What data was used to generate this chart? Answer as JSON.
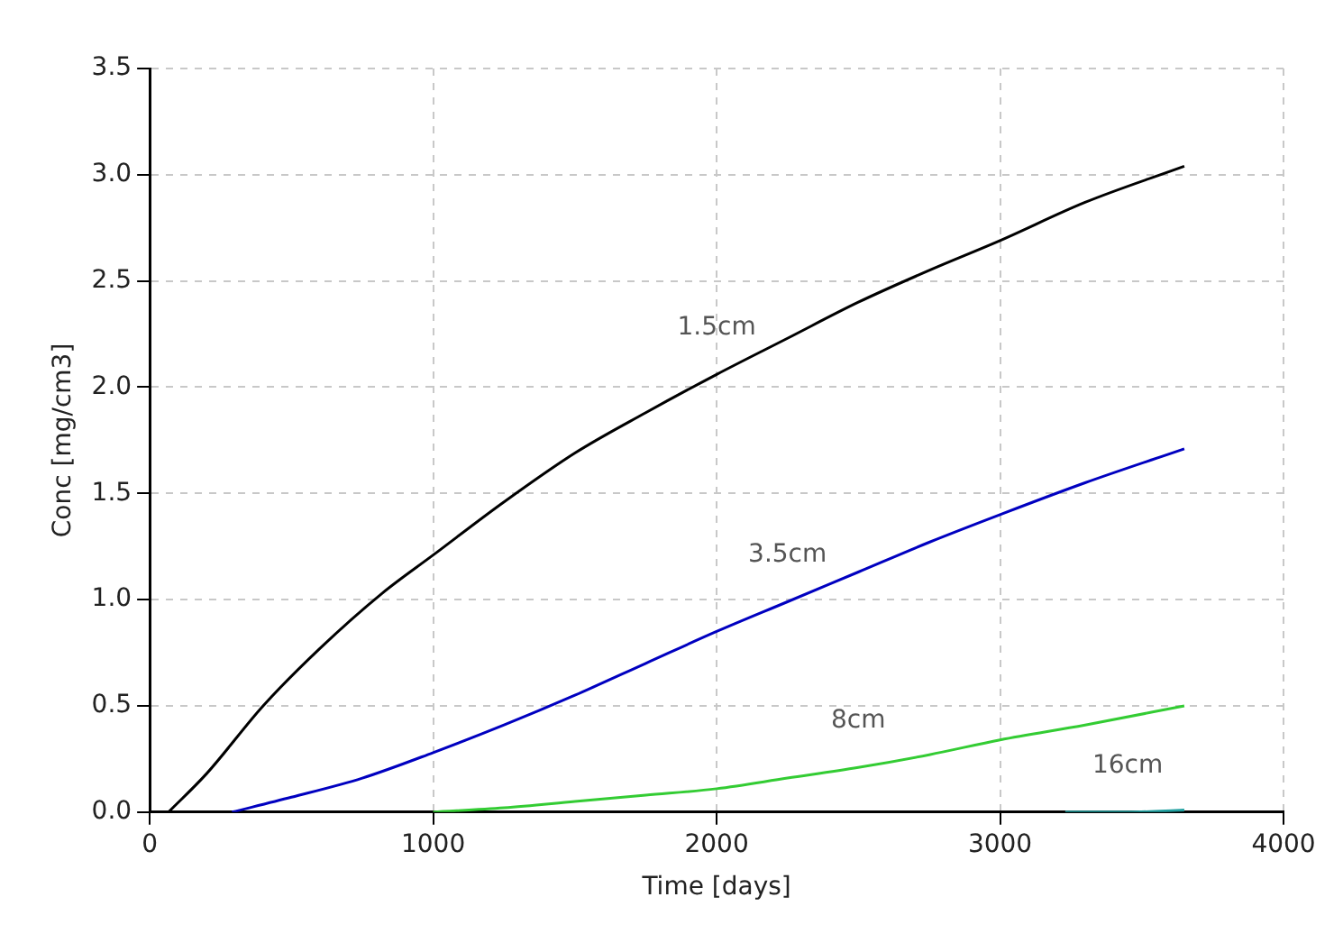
{
  "chart_data": {
    "type": "line",
    "xlabel": "Time [days]",
    "ylabel": "Conc [mg/cm3]",
    "xlim": [
      0,
      4000
    ],
    "xticks": [
      0,
      1000,
      2000,
      3000,
      4000
    ],
    "ylim": [
      0,
      3.5
    ],
    "yticks": [
      {
        "value": 0,
        "label": "0.0"
      },
      {
        "value": 0.5,
        "label": "0.5"
      },
      {
        "value": 1,
        "label": "1.0"
      },
      {
        "value": 1.5,
        "label": "1.5"
      },
      {
        "value": 2,
        "label": "2.0"
      },
      {
        "value": 2.5,
        "label": "2.5"
      },
      {
        "value": 3,
        "label": "3.0"
      },
      {
        "value": 3.5,
        "label": "3.5"
      }
    ],
    "grid": true,
    "legend": false,
    "marker": "none",
    "line_style": "solid",
    "series": [
      {
        "name": "1.5cm",
        "color": "#000000",
        "x": [
          66,
          200,
          400,
          600,
          820,
          1000,
          1250,
          1500,
          1750,
          2000,
          2250,
          2500,
          2750,
          3000,
          3300,
          3650
        ],
        "values": [
          0,
          0.18,
          0.5,
          0.77,
          1.03,
          1.21,
          1.46,
          1.69,
          1.88,
          2.06,
          2.23,
          2.4,
          2.55,
          2.69,
          2.87,
          3.04
        ]
      },
      {
        "name": "3.5cm",
        "color": "#0000c0",
        "x": [
          290,
          500,
          750,
          1000,
          1250,
          1500,
          1750,
          2000,
          2250,
          2500,
          2750,
          3000,
          3300,
          3650
        ],
        "values": [
          0,
          0.07,
          0.16,
          0.28,
          0.41,
          0.55,
          0.7,
          0.85,
          0.99,
          1.13,
          1.27,
          1.4,
          1.55,
          1.71
        ]
      },
      {
        "name": "8cm",
        "color": "#33cc33",
        "x": [
          1000,
          1250,
          1500,
          1750,
          2000,
          2250,
          2500,
          2750,
          3000,
          3300,
          3650
        ],
        "values": [
          0,
          0.02,
          0.05,
          0.08,
          0.11,
          0.16,
          0.21,
          0.27,
          0.34,
          0.41,
          0.5
        ]
      },
      {
        "name": "16cm",
        "color": "#20a0a0",
        "x": [
          3230,
          3450,
          3650
        ],
        "values": [
          0,
          0,
          0.01
        ]
      }
    ]
  }
}
